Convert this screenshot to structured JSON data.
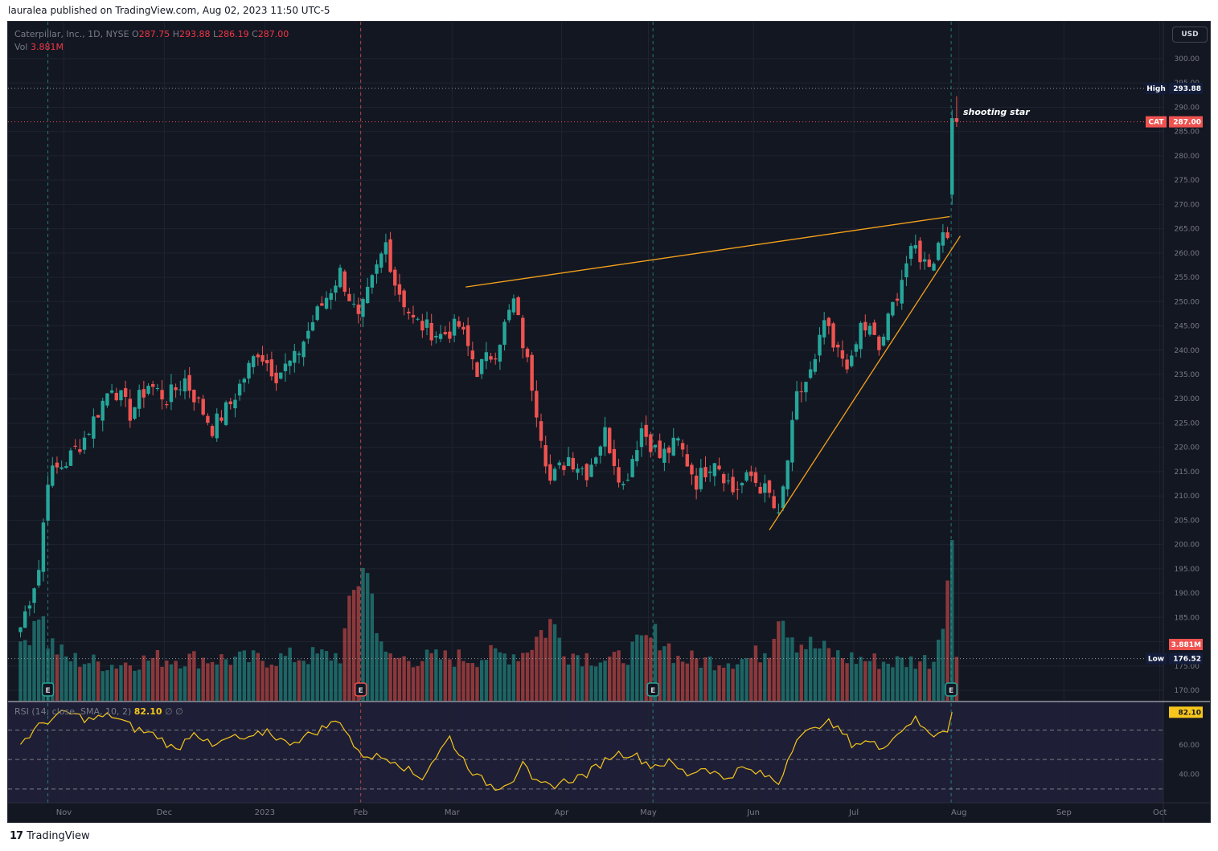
{
  "publisher_line": "lauralea published on TradingView.com, Aug 02, 2023 11:50 UTC-5",
  "footer": {
    "logo_icon": "tradingview-logo-icon",
    "brand": "TradingView"
  },
  "header": {
    "title": "Caterpillar, Inc., 1D, NYSE",
    "open_label": "O",
    "open": "287.75",
    "high_label": "H",
    "high": "293.88",
    "low_label": "L",
    "low": "286.19",
    "close_label": "C",
    "close": "287.00",
    "vol_label": "Vol",
    "vol": "3.881M"
  },
  "rsi_header": {
    "label": "RSI (14, close, SMA, 10, 2)",
    "value": "82.10",
    "extra": "∅ ∅"
  },
  "currency_button": "USD",
  "colors": {
    "up": "#26a69a",
    "down": "#ef5350",
    "trendline": "#f7a21b",
    "rsi": "#f7c61b",
    "background": "#131722"
  },
  "chart_data": {
    "type": "candlestick",
    "symbol": "CAT",
    "exchange": "NYSE",
    "interval": "1D",
    "y_axis": {
      "range": [
        168,
        303
      ],
      "ticks": [
        170,
        175,
        180,
        185,
        190,
        195,
        200,
        205,
        210,
        215,
        220,
        225,
        230,
        235,
        240,
        245,
        250,
        255,
        260,
        265,
        270,
        275,
        280,
        285,
        290,
        295,
        300
      ]
    },
    "x_axis": {
      "labels": [
        "Nov",
        "Dec",
        "2023",
        "Feb",
        "Mar",
        "Apr",
        "May",
        "Jun",
        "Jul",
        "Aug",
        "Sep",
        "Oct"
      ]
    },
    "price_tags": [
      {
        "label": "High",
        "value": "293.88"
      },
      {
        "label": "CAT",
        "value": "287.00"
      },
      {
        "label": "",
        "value": "3.881M"
      },
      {
        "label": "Low",
        "value": "176.52"
      }
    ],
    "rsi_value_tag": "82.10",
    "rsi_ticks": [
      "60.00",
      "40.00"
    ],
    "annotations": [
      {
        "text": "shooting star"
      }
    ],
    "earnings_markers": [
      "E",
      "E",
      "E",
      "E"
    ],
    "trendlines": [
      {
        "from": [
          "Mar 01 2023",
          253
        ],
        "to": [
          "Aug 01 2023",
          267.5
        ]
      },
      {
        "from": [
          "May 30 2023",
          203
        ],
        "to": [
          "Aug 02 2023",
          263.5
        ]
      }
    ],
    "waypoints": [
      [
        0,
        183
      ],
      [
        4,
        195
      ],
      [
        6,
        214
      ],
      [
        10,
        217
      ],
      [
        14,
        222
      ],
      [
        20,
        233
      ],
      [
        24,
        227
      ],
      [
        28,
        233
      ],
      [
        32,
        230
      ],
      [
        36,
        234
      ],
      [
        42,
        224
      ],
      [
        46,
        229
      ],
      [
        52,
        240
      ],
      [
        56,
        235
      ],
      [
        60,
        238
      ],
      [
        64,
        246
      ],
      [
        70,
        256
      ],
      [
        74,
        246
      ],
      [
        80,
        262
      ],
      [
        82,
        254
      ],
      [
        86,
        246
      ],
      [
        92,
        243
      ],
      [
        96,
        245
      ],
      [
        100,
        236
      ],
      [
        104,
        240
      ],
      [
        108,
        250
      ],
      [
        112,
        233
      ],
      [
        116,
        213
      ],
      [
        120,
        218
      ],
      [
        124,
        215
      ],
      [
        128,
        223
      ],
      [
        132,
        212
      ],
      [
        136,
        224
      ],
      [
        140,
        218
      ],
      [
        144,
        221
      ],
      [
        148,
        213
      ],
      [
        152,
        218
      ],
      [
        156,
        211
      ],
      [
        160,
        214
      ],
      [
        164,
        210
      ],
      [
        166,
        205
      ],
      [
        170,
        230
      ],
      [
        174,
        237
      ],
      [
        176,
        246
      ],
      [
        178,
        240
      ],
      [
        182,
        237
      ],
      [
        184,
        245
      ],
      [
        186,
        244
      ],
      [
        188,
        240
      ],
      [
        192,
        252
      ],
      [
        194,
        258
      ],
      [
        196,
        261
      ],
      [
        198,
        258
      ],
      [
        200,
        259
      ],
      [
        202,
        265
      ],
      [
        203,
        265
      ],
      [
        204,
        287
      ]
    ],
    "volume_waypoints": [
      [
        0,
        4
      ],
      [
        4,
        8
      ],
      [
        6,
        5
      ],
      [
        10,
        3.5
      ],
      [
        20,
        3
      ],
      [
        30,
        3.5
      ],
      [
        40,
        3.5
      ],
      [
        50,
        3.4
      ],
      [
        60,
        3.6
      ],
      [
        70,
        3.8
      ],
      [
        75,
        12
      ],
      [
        80,
        3.5
      ],
      [
        90,
        3.5
      ],
      [
        100,
        3.6
      ],
      [
        110,
        4
      ],
      [
        116,
        6.5
      ],
      [
        120,
        4
      ],
      [
        130,
        3.3
      ],
      [
        140,
        5.5
      ],
      [
        144,
        3.5
      ],
      [
        150,
        3.3
      ],
      [
        160,
        3.5
      ],
      [
        164,
        4.5
      ],
      [
        166,
        8
      ],
      [
        170,
        5
      ],
      [
        180,
        3.6
      ],
      [
        190,
        3.2
      ],
      [
        200,
        3.4
      ],
      [
        204,
        12.5
      ],
      [
        205,
        4
      ]
    ],
    "rsi_waypoints": [
      [
        0,
        61
      ],
      [
        5,
        75
      ],
      [
        10,
        82
      ],
      [
        15,
        77
      ],
      [
        20,
        80
      ],
      [
        25,
        71
      ],
      [
        30,
        66
      ],
      [
        34,
        56
      ],
      [
        38,
        70
      ],
      [
        42,
        58
      ],
      [
        46,
        65
      ],
      [
        50,
        63
      ],
      [
        54,
        70
      ],
      [
        58,
        61
      ],
      [
        62,
        65
      ],
      [
        66,
        71
      ],
      [
        70,
        77
      ],
      [
        74,
        54
      ],
      [
        78,
        52
      ],
      [
        82,
        50
      ],
      [
        86,
        40
      ],
      [
        88,
        38
      ],
      [
        90,
        48
      ],
      [
        94,
        65
      ],
      [
        96,
        54
      ],
      [
        100,
        38
      ],
      [
        104,
        31
      ],
      [
        108,
        37
      ],
      [
        110,
        50
      ],
      [
        112,
        34
      ],
      [
        116,
        32
      ],
      [
        120,
        36
      ],
      [
        124,
        40
      ],
      [
        130,
        54
      ],
      [
        134,
        54
      ],
      [
        138,
        46
      ],
      [
        142,
        48
      ],
      [
        146,
        40
      ],
      [
        150,
        45
      ],
      [
        154,
        37
      ],
      [
        158,
        44
      ],
      [
        162,
        40
      ],
      [
        164,
        38
      ],
      [
        166,
        34
      ],
      [
        170,
        66
      ],
      [
        174,
        70
      ],
      [
        176,
        77
      ],
      [
        180,
        68
      ],
      [
        182,
        61
      ],
      [
        186,
        62
      ],
      [
        188,
        58
      ],
      [
        192,
        67
      ],
      [
        194,
        74
      ],
      [
        196,
        77
      ],
      [
        198,
        70
      ],
      [
        200,
        67
      ],
      [
        202,
        71
      ],
      [
        203,
        71
      ],
      [
        204,
        82.1
      ]
    ]
  }
}
